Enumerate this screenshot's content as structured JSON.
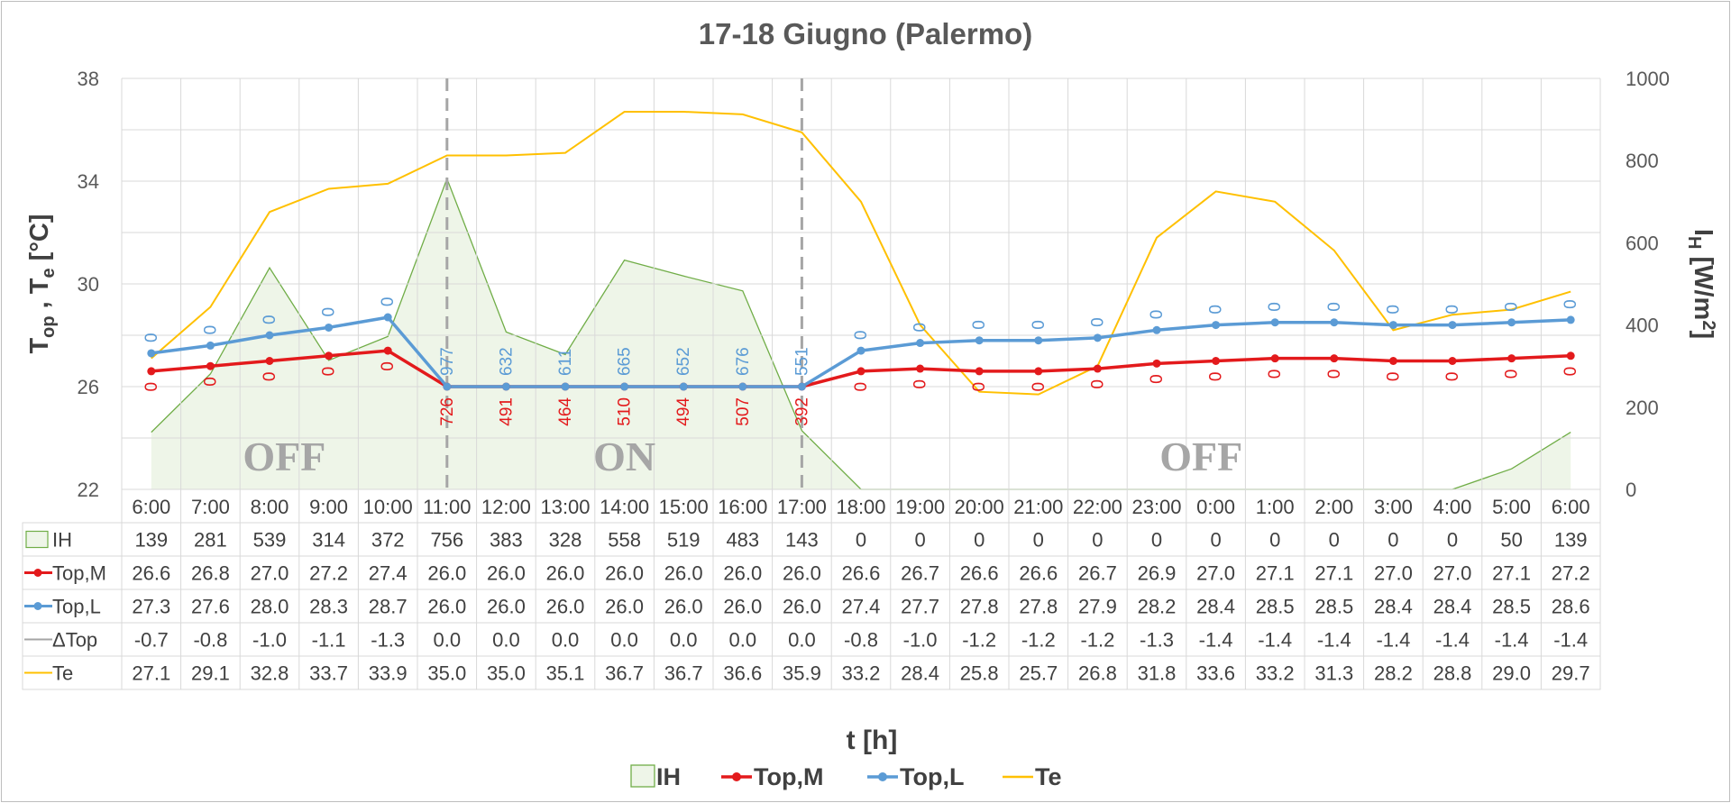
{
  "chart_data": {
    "type": "line",
    "title": "17-18 Giugno (Palermo)",
    "xlabel": "t [h]",
    "ylabel_left": "Top , Te [°C]",
    "ylabel_left_main": [
      "T",
      "op",
      " , T",
      "e",
      " [°C]"
    ],
    "ylabel_right": "IH [W/m2]",
    "ylabel_right_parts": [
      "I",
      "H",
      " [W/m",
      "2",
      "]"
    ],
    "ylim_left": [
      22,
      38
    ],
    "ylim_right": [
      0,
      1000
    ],
    "yticks_left": [
      "22",
      "26",
      "30",
      "34",
      "38"
    ],
    "yticks_right": [
      "0",
      "200",
      "400",
      "600",
      "800",
      "1000"
    ],
    "categories": [
      "6:00",
      "7:00",
      "8:00",
      "9:00",
      "10:00",
      "11:00",
      "12:00",
      "13:00",
      "14:00",
      "15:00",
      "16:00",
      "17:00",
      "18:00",
      "19:00",
      "20:00",
      "21:00",
      "22:00",
      "23:00",
      "0:00",
      "1:00",
      "2:00",
      "3:00",
      "4:00",
      "5:00",
      "6:00"
    ],
    "grid": true,
    "legend_position": "bottom",
    "colors": {
      "IH_fill": "#eef5e8",
      "IH_line": "#70ad47",
      "TopM": "#e31a1c",
      "TopL": "#5b9bd5",
      "dTop": "#a5a5a5",
      "Te": "#ffc000",
      "text": "#595959",
      "grid": "#d9d9d9",
      "mode_text": "#a6a6a6",
      "divider": "#a6a6a6"
    },
    "series": [
      {
        "name": "IH",
        "axis": "right",
        "values": [
          139,
          281,
          539,
          314,
          372,
          756,
          383,
          328,
          558,
          519,
          483,
          143,
          0,
          0,
          0,
          0,
          0,
          0,
          0,
          0,
          0,
          0,
          0,
          50,
          139
        ]
      },
      {
        "name": "Top,M",
        "axis": "left",
        "values": [
          26.6,
          26.8,
          27.0,
          27.2,
          27.4,
          26.0,
          26.0,
          26.0,
          26.0,
          26.0,
          26.0,
          26.0,
          26.6,
          26.7,
          26.6,
          26.6,
          26.7,
          26.9,
          27.0,
          27.1,
          27.1,
          27.0,
          27.0,
          27.1,
          27.2
        ]
      },
      {
        "name": "Top,L",
        "axis": "left",
        "values": [
          27.3,
          27.6,
          28.0,
          28.3,
          28.7,
          26.0,
          26.0,
          26.0,
          26.0,
          26.0,
          26.0,
          26.0,
          27.4,
          27.7,
          27.8,
          27.8,
          27.9,
          28.2,
          28.4,
          28.5,
          28.5,
          28.4,
          28.4,
          28.5,
          28.6
        ]
      },
      {
        "name": "ΔTop",
        "axis": "left",
        "values": [
          -0.7,
          -0.8,
          -1.0,
          -1.1,
          -1.3,
          0.0,
          0.0,
          0.0,
          0.0,
          0.0,
          0.0,
          0.0,
          -0.8,
          -1.0,
          -1.2,
          -1.2,
          -1.2,
          -1.3,
          -1.4,
          -1.4,
          -1.4,
          -1.4,
          -1.4,
          -1.4,
          -1.4
        ]
      },
      {
        "name": "Te",
        "axis": "left",
        "values": [
          27.1,
          29.1,
          32.8,
          33.7,
          33.9,
          35.0,
          35.0,
          35.1,
          36.7,
          36.7,
          36.6,
          35.9,
          33.2,
          28.4,
          25.8,
          25.7,
          26.8,
          31.8,
          33.6,
          33.2,
          31.3,
          28.2,
          28.8,
          29.0,
          29.7
        ]
      }
    ],
    "data_labels": {
      "TopL": [
        "0",
        "0",
        "0",
        "0",
        "0",
        "977",
        "632",
        "611",
        "665",
        "652",
        "676",
        "551",
        "0",
        "0",
        "0",
        "0",
        "0",
        "0",
        "0",
        "0",
        "0",
        "0",
        "0",
        "0",
        "0"
      ],
      "TopM": [
        "0",
        "0",
        "0",
        "0",
        "0",
        "726",
        "491",
        "464",
        "510",
        "494",
        "507",
        "392",
        "0",
        "0",
        "0",
        "0",
        "0",
        "0",
        "0",
        "0",
        "0",
        "0",
        "0",
        "0",
        "0"
      ]
    },
    "table_rows": [
      {
        "legend": "IH",
        "values": [
          "139",
          "281",
          "539",
          "314",
          "372",
          "756",
          "383",
          "328",
          "558",
          "519",
          "483",
          "143",
          "0",
          "0",
          "0",
          "0",
          "0",
          "0",
          "0",
          "0",
          "0",
          "0",
          "0",
          "50",
          "139"
        ]
      },
      {
        "legend": "Top,M",
        "values": [
          "26.6",
          "26.8",
          "27.0",
          "27.2",
          "27.4",
          "26.0",
          "26.0",
          "26.0",
          "26.0",
          "26.0",
          "26.0",
          "26.0",
          "26.6",
          "26.7",
          "26.6",
          "26.6",
          "26.7",
          "26.9",
          "27.0",
          "27.1",
          "27.1",
          "27.0",
          "27.0",
          "27.1",
          "27.2"
        ]
      },
      {
        "legend": "Top,L",
        "values": [
          "27.3",
          "27.6",
          "28.0",
          "28.3",
          "28.7",
          "26.0",
          "26.0",
          "26.0",
          "26.0",
          "26.0",
          "26.0",
          "26.0",
          "27.4",
          "27.7",
          "27.8",
          "27.8",
          "27.9",
          "28.2",
          "28.4",
          "28.5",
          "28.5",
          "28.4",
          "28.4",
          "28.5",
          "28.6"
        ]
      },
      {
        "legend": "ΔTop",
        "values": [
          "-0.7",
          "-0.8",
          "-1.0",
          "-1.1",
          "-1.3",
          "0.0",
          "0.0",
          "0.0",
          "0.0",
          "0.0",
          "0.0",
          "0.0",
          "-0.8",
          "-1.0",
          "-1.2",
          "-1.2",
          "-1.2",
          "-1.3",
          "-1.4",
          "-1.4",
          "-1.4",
          "-1.4",
          "-1.4",
          "-1.4",
          "-1.4"
        ]
      },
      {
        "legend": "Te",
        "values": [
          "27.1",
          "29.1",
          "32.8",
          "33.7",
          "33.9",
          "35.0",
          "35.0",
          "35.1",
          "36.7",
          "36.7",
          "36.6",
          "35.9",
          "33.2",
          "28.4",
          "25.8",
          "25.7",
          "26.8",
          "31.8",
          "33.6",
          "33.2",
          "31.3",
          "28.2",
          "28.8",
          "29.0",
          "29.7"
        ]
      }
    ],
    "annotations": [
      {
        "text": "OFF",
        "at_category": 2.25,
        "y_value": 23.3
      },
      {
        "text": "ON",
        "at_category": 8.0,
        "y_value": 23.3
      },
      {
        "text": "OFF",
        "at_category": 17.75,
        "y_value": 23.3
      }
    ],
    "mode_dividers_at": [
      "11:00",
      "17:00"
    ],
    "legend": [
      "IH",
      "Top,M",
      "Top,L",
      "Te"
    ]
  }
}
